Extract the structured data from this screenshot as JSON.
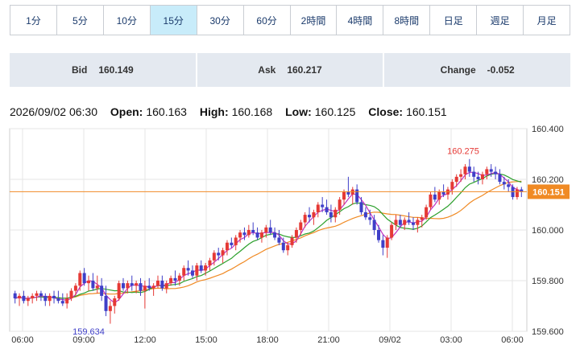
{
  "timeframes": [
    {
      "label": "1分",
      "active": false
    },
    {
      "label": "5分",
      "active": false
    },
    {
      "label": "10分",
      "active": false
    },
    {
      "label": "15分",
      "active": true
    },
    {
      "label": "30分",
      "active": false
    },
    {
      "label": "60分",
      "active": false
    },
    {
      "label": "2時間",
      "active": false
    },
    {
      "label": "4時間",
      "active": false
    },
    {
      "label": "8時間",
      "active": false
    },
    {
      "label": "日足",
      "active": false
    },
    {
      "label": "週足",
      "active": false
    },
    {
      "label": "月足",
      "active": false
    }
  ],
  "quotes": {
    "bid_label": "Bid",
    "bid_value": "160.149",
    "ask_label": "Ask",
    "ask_value": "160.217",
    "change_label": "Change",
    "change_value": "-0.052"
  },
  "ohlc": {
    "datetime": "2026/09/02 06:30",
    "open_label": "Open:",
    "open": "160.163",
    "high_label": "High:",
    "high": "160.168",
    "low_label": "Low:",
    "low": "160.125",
    "close_label": "Close:",
    "close": "160.151"
  },
  "colors": {
    "up": "#e53935",
    "down": "#3f3fc8",
    "ma_short": "#c030c0",
    "ma_mid": "#2ca02c",
    "ma_long": "#f08a24",
    "price_line": "#f08a24",
    "grid": "#e6e6e6"
  },
  "chart_data": {
    "type": "candlestick",
    "y_axis": {
      "min": 159.6,
      "max": 160.4,
      "ticks": [
        "160.400",
        "160.200",
        "160.000",
        "159.800",
        "159.600"
      ]
    },
    "x_labels": [
      "06:00",
      "09:00",
      "12:00",
      "15:00",
      "18:00",
      "21:00",
      "09/02",
      "03:00",
      "06:00"
    ],
    "current_price": "160.151",
    "high_annotation": "160.275",
    "low_annotation": "159.634",
    "candles": [
      [
        159.75,
        159.76,
        159.71,
        159.73
      ],
      [
        159.73,
        159.75,
        159.7,
        159.74
      ],
      [
        159.74,
        159.76,
        159.71,
        159.72
      ],
      [
        159.72,
        159.74,
        159.7,
        159.73
      ],
      [
        159.73,
        159.75,
        159.71,
        159.74
      ],
      [
        159.74,
        159.76,
        159.72,
        159.75
      ],
      [
        159.75,
        159.76,
        159.72,
        159.74
      ],
      [
        159.74,
        159.75,
        159.7,
        159.72
      ],
      [
        159.72,
        159.75,
        159.7,
        159.74
      ],
      [
        159.74,
        159.76,
        159.71,
        159.73
      ],
      [
        159.73,
        159.76,
        159.71,
        159.72
      ],
      [
        159.72,
        159.75,
        159.7,
        159.71
      ],
      [
        159.71,
        159.75,
        159.69,
        159.73
      ],
      [
        159.73,
        159.77,
        159.72,
        159.76
      ],
      [
        159.76,
        159.79,
        159.74,
        159.78
      ],
      [
        159.78,
        159.84,
        159.76,
        159.83
      ],
      [
        159.83,
        159.85,
        159.78,
        159.79
      ],
      [
        159.79,
        159.82,
        159.76,
        159.8
      ],
      [
        159.8,
        159.83,
        159.76,
        159.77
      ],
      [
        159.77,
        159.82,
        159.75,
        159.78
      ],
      [
        159.78,
        159.81,
        159.72,
        159.74
      ],
      [
        159.74,
        159.78,
        159.66,
        159.68
      ],
      [
        159.68,
        159.72,
        159.63,
        159.7
      ],
      [
        159.7,
        159.74,
        159.67,
        159.73
      ],
      [
        159.73,
        159.8,
        159.72,
        159.79
      ],
      [
        159.79,
        159.81,
        159.76,
        159.77
      ],
      [
        159.77,
        159.8,
        159.75,
        159.79
      ],
      [
        159.79,
        159.82,
        159.76,
        159.78
      ],
      [
        159.78,
        159.8,
        159.75,
        159.79
      ],
      [
        159.79,
        159.81,
        159.74,
        159.76
      ],
      [
        159.76,
        159.8,
        159.69,
        159.78
      ],
      [
        159.78,
        159.81,
        159.76,
        159.77
      ],
      [
        159.77,
        159.79,
        159.74,
        159.78
      ],
      [
        159.78,
        159.82,
        159.77,
        159.8
      ],
      [
        159.8,
        159.82,
        159.76,
        159.77
      ],
      [
        159.77,
        159.8,
        159.75,
        159.79
      ],
      [
        159.79,
        159.82,
        159.78,
        159.81
      ],
      [
        159.81,
        159.84,
        159.78,
        159.8
      ],
      [
        159.8,
        159.83,
        159.78,
        159.82
      ],
      [
        159.82,
        159.86,
        159.8,
        159.85
      ],
      [
        159.85,
        159.88,
        159.82,
        159.84
      ],
      [
        159.84,
        159.86,
        159.81,
        159.82
      ],
      [
        159.82,
        159.87,
        159.8,
        159.86
      ],
      [
        159.86,
        159.88,
        159.83,
        159.84
      ],
      [
        159.84,
        159.87,
        159.82,
        159.86
      ],
      [
        159.86,
        159.89,
        159.84,
        159.88
      ],
      [
        159.88,
        159.92,
        159.86,
        159.91
      ],
      [
        159.91,
        159.93,
        159.88,
        159.9
      ],
      [
        159.9,
        159.93,
        159.87,
        159.92
      ],
      [
        159.92,
        159.96,
        159.9,
        159.95
      ],
      [
        159.95,
        159.97,
        159.93,
        159.94
      ],
      [
        159.94,
        159.98,
        159.92,
        159.97
      ],
      [
        159.97,
        160.0,
        159.95,
        159.99
      ],
      [
        159.99,
        160.01,
        159.96,
        159.98
      ],
      [
        159.98,
        160.02,
        159.97,
        160.0
      ],
      [
        160.0,
        160.03,
        159.98,
        159.99
      ],
      [
        159.99,
        160.01,
        159.96,
        159.97
      ],
      [
        159.97,
        160.0,
        159.95,
        159.99
      ],
      [
        159.99,
        160.02,
        159.97,
        160.01
      ],
      [
        160.01,
        160.04,
        159.98,
        159.99
      ],
      [
        159.99,
        160.01,
        159.96,
        159.97
      ],
      [
        159.97,
        160.0,
        159.94,
        159.95
      ],
      [
        159.95,
        159.97,
        159.91,
        159.92
      ],
      [
        159.92,
        159.95,
        159.9,
        159.94
      ],
      [
        159.94,
        159.98,
        159.93,
        159.97
      ],
      [
        159.97,
        160.01,
        159.95,
        160.0
      ],
      [
        160.0,
        160.04,
        159.98,
        160.03
      ],
      [
        160.03,
        160.07,
        160.01,
        160.06
      ],
      [
        160.06,
        160.09,
        160.03,
        160.05
      ],
      [
        160.05,
        160.08,
        160.02,
        160.07
      ],
      [
        160.07,
        160.11,
        160.05,
        160.1
      ],
      [
        160.1,
        160.13,
        160.07,
        160.09
      ],
      [
        160.09,
        160.12,
        160.06,
        160.07
      ],
      [
        160.07,
        160.1,
        160.03,
        160.05
      ],
      [
        160.05,
        160.09,
        160.03,
        160.08
      ],
      [
        160.08,
        160.13,
        160.06,
        160.12
      ],
      [
        160.12,
        160.16,
        160.1,
        160.15
      ],
      [
        160.15,
        160.21,
        160.13,
        160.14
      ],
      [
        160.14,
        160.17,
        160.1,
        160.16
      ],
      [
        160.16,
        160.18,
        160.1,
        160.11
      ],
      [
        160.11,
        160.13,
        160.06,
        160.07
      ],
      [
        160.07,
        160.09,
        160.04,
        160.05
      ],
      [
        160.05,
        160.08,
        160.02,
        160.04
      ],
      [
        160.04,
        160.06,
        159.98,
        160.0
      ],
      [
        160.0,
        160.02,
        159.95,
        159.96
      ],
      [
        159.96,
        159.98,
        159.9,
        159.93
      ],
      [
        159.93,
        159.98,
        159.89,
        159.97
      ],
      [
        159.97,
        160.03,
        159.96,
        160.02
      ],
      [
        160.02,
        160.06,
        160.0,
        160.04
      ],
      [
        160.04,
        160.06,
        160.01,
        160.02
      ],
      [
        160.02,
        160.05,
        160.0,
        160.04
      ],
      [
        160.04,
        160.07,
        160.02,
        160.03
      ],
      [
        160.03,
        160.05,
        160.0,
        160.02
      ],
      [
        160.02,
        160.05,
        159.99,
        160.04
      ],
      [
        160.04,
        160.06,
        160.01,
        160.05
      ],
      [
        160.05,
        160.1,
        160.04,
        160.09
      ],
      [
        160.09,
        160.15,
        160.08,
        160.14
      ],
      [
        160.14,
        160.17,
        160.11,
        160.12
      ],
      [
        160.12,
        160.16,
        160.1,
        160.15
      ],
      [
        160.15,
        160.18,
        160.13,
        160.14
      ],
      [
        160.14,
        160.17,
        160.12,
        160.16
      ],
      [
        160.16,
        160.2,
        160.14,
        160.19
      ],
      [
        160.19,
        160.22,
        160.17,
        160.21
      ],
      [
        160.21,
        160.24,
        160.19,
        160.22
      ],
      [
        160.22,
        160.26,
        160.2,
        160.25
      ],
      [
        160.25,
        160.28,
        160.21,
        160.23
      ],
      [
        160.23,
        160.25,
        160.19,
        160.21
      ],
      [
        160.21,
        160.23,
        160.18,
        160.2
      ],
      [
        160.2,
        160.23,
        160.18,
        160.22
      ],
      [
        160.22,
        160.25,
        160.2,
        160.24
      ],
      [
        160.24,
        160.26,
        160.21,
        160.23
      ],
      [
        160.23,
        160.25,
        160.2,
        160.22
      ],
      [
        160.22,
        160.24,
        160.18,
        160.19
      ],
      [
        160.19,
        160.21,
        160.16,
        160.18
      ],
      [
        160.18,
        160.2,
        160.15,
        160.17
      ],
      [
        160.17,
        160.18,
        160.12,
        160.13
      ],
      [
        160.13,
        160.17,
        160.12,
        160.16
      ],
      [
        160.16,
        160.17,
        160.13,
        160.15
      ]
    ]
  }
}
